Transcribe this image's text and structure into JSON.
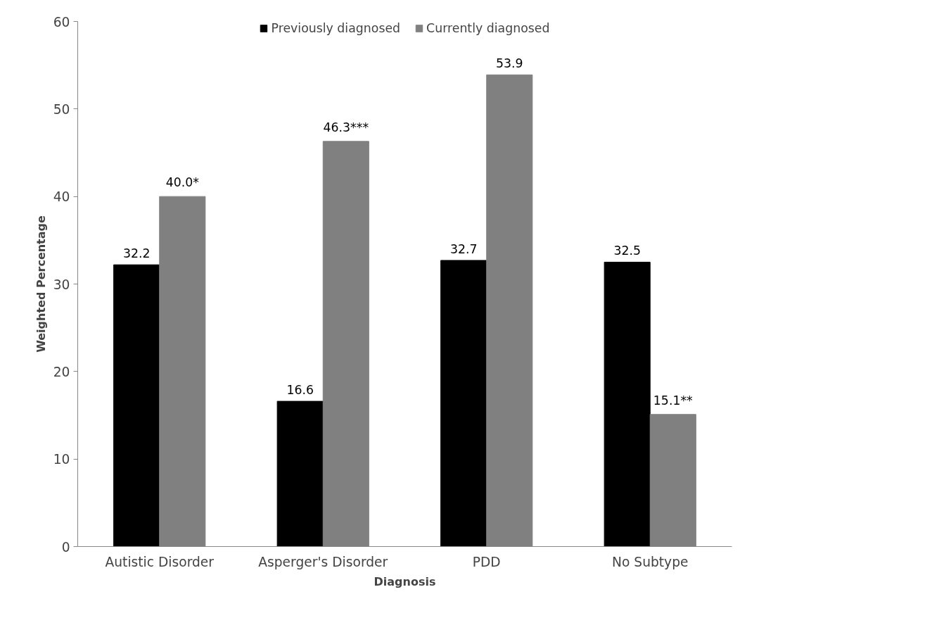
{
  "chart_data": {
    "type": "bar",
    "xlabel": "Diagnosis",
    "ylabel": "Weighted Percentage",
    "categories": [
      "Autistic Disorder",
      "Asperger's Disorder",
      "PDD",
      "No Subtype"
    ],
    "series": [
      {
        "name": "Previously diagnosed",
        "color": "#000000",
        "values": [
          32.2,
          16.6,
          32.7,
          32.5
        ],
        "value_labels": [
          "32.2",
          "16.6",
          "32.7",
          "32.5"
        ]
      },
      {
        "name": "Currently diagnosed",
        "color": "#808080",
        "values": [
          40.0,
          46.3,
          53.9,
          15.1
        ],
        "value_labels": [
          "40.0*",
          "46.3***",
          "53.9",
          "15.1**"
        ]
      }
    ],
    "ylim": [
      0,
      60
    ],
    "yticks": [
      0,
      10,
      20,
      30,
      40,
      50,
      60
    ],
    "grid": false,
    "legend": "top"
  }
}
